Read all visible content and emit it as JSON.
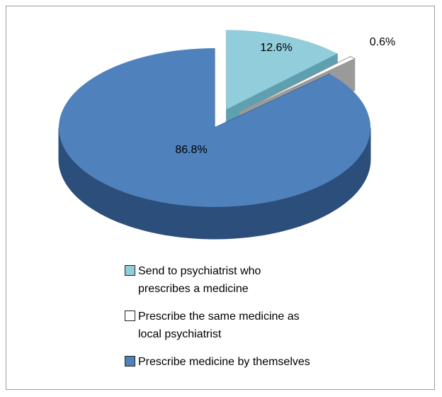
{
  "chart_data": {
    "type": "pie3d",
    "categories": [
      "Send to psychiatrist who prescribes a medicine",
      "Prescribe the same medicine as local psychiatrist",
      "Prescribe medicine by themselves"
    ],
    "values": [
      12.6,
      0.6,
      86.8
    ],
    "value_labels": [
      "12.6%",
      "0.6%",
      "86.8%"
    ],
    "colors": [
      "#92cddc",
      "#ffffff",
      "#4f81bd"
    ]
  }
}
